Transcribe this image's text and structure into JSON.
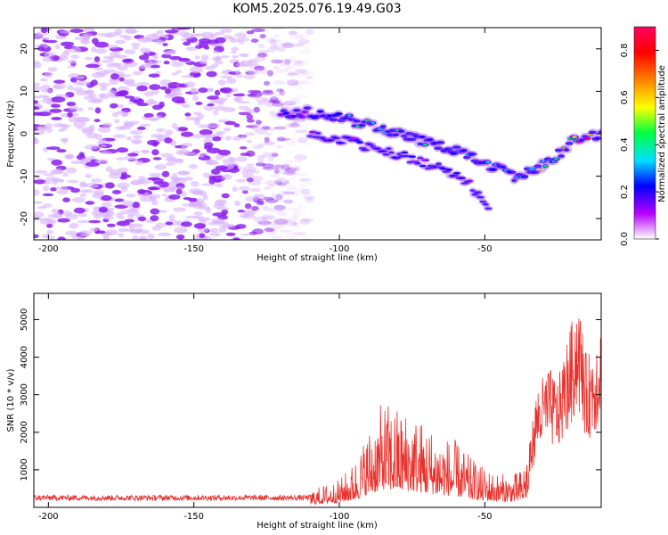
{
  "title": "KOM5.2025.076.19.49.G03",
  "colors": {
    "snr_line": "#e8312c",
    "spectrogram_noise": "#8a2be2",
    "colormap": [
      "#ffffff",
      "#b800ff",
      "#0000ff",
      "#00e0ff",
      "#00ff40",
      "#ffff00",
      "#ff8000",
      "#ff0000",
      "#ff0060"
    ]
  },
  "chart_data": [
    {
      "type": "heatmap",
      "title": "KOM5.2025.076.19.49.G03",
      "xlabel": "Height of straight line (km)",
      "ylabel": "Frequency (Hz)",
      "xlim": [
        -205,
        -10
      ],
      "ylim": [
        -25,
        25
      ],
      "x_ticks": [
        -200,
        -150,
        -100,
        -50
      ],
      "y_ticks": [
        20,
        10,
        0,
        -10,
        -20
      ],
      "colorbar": {
        "label": "Normalized spectral amplitude",
        "range": [
          0,
          0.9
        ],
        "ticks": [
          "0.0",
          "0.2",
          "0.4",
          "0.6",
          "0.8"
        ]
      },
      "noise_region": {
        "x_from": -205,
        "x_to": -110,
        "amplitude": 0.15
      },
      "signal_track": {
        "x": [
          -120,
          -110,
          -100,
          -90,
          -80,
          -70,
          -60,
          -50,
          -40,
          -32,
          -25,
          -20,
          -15,
          -10
        ],
        "y": [
          5,
          5,
          4,
          2,
          0,
          -2,
          -4,
          -7,
          -10,
          -8,
          -5,
          -2,
          -1,
          0
        ],
        "amplitude": [
          0.2,
          0.25,
          0.25,
          0.45,
          0.4,
          0.35,
          0.3,
          0.25,
          0.35,
          0.45,
          0.4,
          0.6,
          0.85,
          0.7
        ]
      },
      "secondary_track": {
        "x": [
          -110,
          -95,
          -80,
          -65,
          -55,
          -48
        ],
        "y": [
          0,
          -2,
          -5,
          -8,
          -12,
          -18
        ],
        "amplitude": [
          0.2,
          0.2,
          0.25,
          0.2,
          0.15,
          0.1
        ]
      }
    },
    {
      "type": "line",
      "xlabel": "Height of straight line (km)",
      "ylabel": "SNR (10 * v/v)",
      "xlim": [
        -205,
        -10
      ],
      "ylim": [
        0,
        5700
      ],
      "x_ticks": [
        -200,
        -150,
        -100,
        -50
      ],
      "y_ticks": [
        1000,
        2000,
        3000,
        4000,
        5000
      ],
      "envelope": {
        "x": [
          -205,
          -130,
          -115,
          -108,
          -100,
          -95,
          -90,
          -85,
          -80,
          -75,
          -70,
          -65,
          -60,
          -55,
          -50,
          -45,
          -40,
          -37,
          -35,
          -32,
          -28,
          -25,
          -22,
          -20,
          -18,
          -15,
          -12,
          -10
        ],
        "y": [
          250,
          250,
          260,
          350,
          500,
          800,
          1400,
          1900,
          1800,
          1700,
          1500,
          1300,
          1200,
          900,
          700,
          600,
          600,
          700,
          1200,
          2600,
          3000,
          2700,
          3500,
          4000,
          4600,
          3200,
          3600,
          4200
        ]
      }
    }
  ]
}
